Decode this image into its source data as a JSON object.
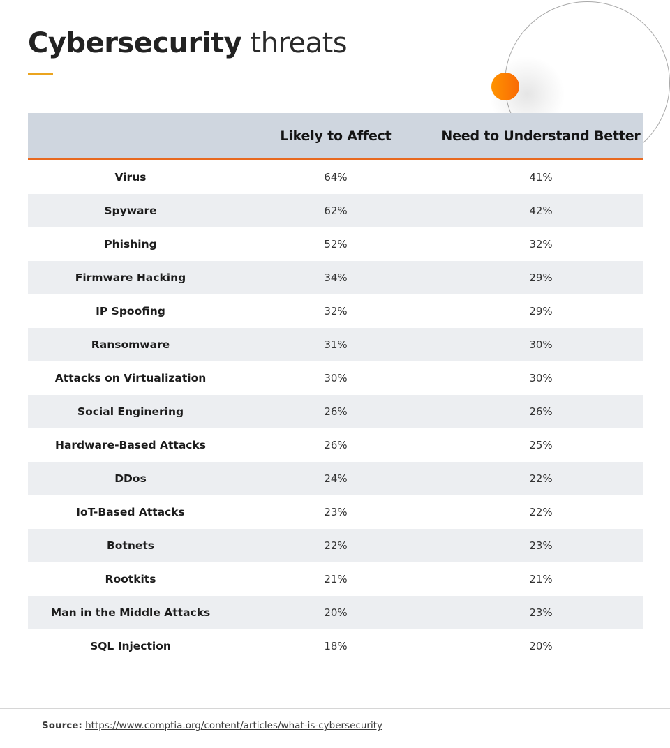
{
  "title": {
    "strong": "Cybersecurity",
    "light": " threats"
  },
  "colors": {
    "accent_underline": "#eba41f",
    "header_bg": "#cfd6df",
    "header_rule": "#e8691f",
    "row_alt_bg": "#eceef1",
    "dot_gradient": [
      "#ff9300",
      "#f96a05"
    ]
  },
  "table": {
    "columns": [
      "",
      "Likely to Affect",
      "Need to Understand Better"
    ],
    "rows": [
      {
        "threat": "Virus",
        "likely": "64%",
        "understand": "41%"
      },
      {
        "threat": "Spyware",
        "likely": "62%",
        "understand": "42%"
      },
      {
        "threat": "Phishing",
        "likely": "52%",
        "understand": "32%"
      },
      {
        "threat": "Firmware Hacking",
        "likely": "34%",
        "understand": "29%"
      },
      {
        "threat": "IP Spoofing",
        "likely": "32%",
        "understand": "29%"
      },
      {
        "threat": "Ransomware",
        "likely": "31%",
        "understand": "30%"
      },
      {
        "threat": "Attacks on Virtualization",
        "likely": "30%",
        "understand": "30%"
      },
      {
        "threat": "Social Enginering",
        "likely": "26%",
        "understand": "26%"
      },
      {
        "threat": "Hardware-Based Attacks",
        "likely": "26%",
        "understand": "25%"
      },
      {
        "threat": "DDos",
        "likely": "24%",
        "understand": "22%"
      },
      {
        "threat": "IoT-Based Attacks",
        "likely": "23%",
        "understand": "22%"
      },
      {
        "threat": "Botnets",
        "likely": "22%",
        "understand": "23%"
      },
      {
        "threat": "Rootkits",
        "likely": "21%",
        "understand": "21%"
      },
      {
        "threat": "Man in the Middle Attacks",
        "likely": "20%",
        "understand": "23%"
      },
      {
        "threat": "SQL Injection",
        "likely": "18%",
        "understand": "20%"
      }
    ]
  },
  "footer": {
    "label": "Source:",
    "link_text": "https://www.comptia.org/content/articles/what-is-cybersecurity"
  }
}
